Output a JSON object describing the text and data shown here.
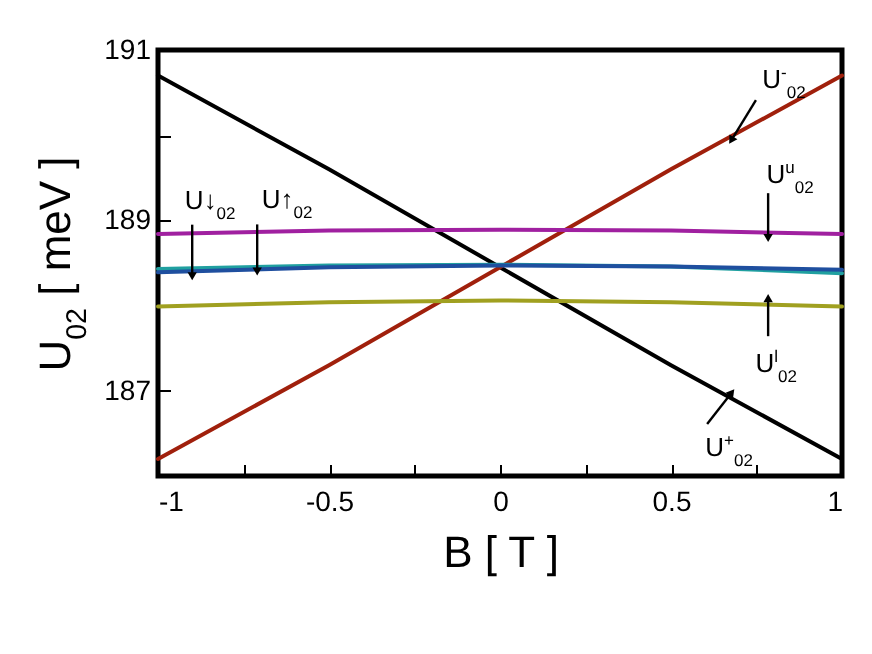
{
  "chart_data": {
    "type": "line",
    "xlabel": "B [ T ]",
    "ylabel": "U$_{02}$ [ meV ]",
    "x": [
      -1,
      -0.5,
      0,
      0.5,
      1
    ],
    "series": [
      {
        "color": "#000000",
        "values": [
          190.7,
          189.6,
          188.45,
          187.3,
          186.2
        ]
      },
      {
        "color": "#a0200c",
        "values": [
          186.2,
          187.3,
          188.45,
          189.6,
          190.7
        ]
      },
      {
        "color": "#a020a0",
        "values": [
          188.84,
          188.88,
          188.89,
          188.88,
          188.84
        ]
      },
      {
        "color": "#20a0a0",
        "values": [
          188.43,
          188.47,
          188.48,
          188.46,
          188.38
        ]
      },
      {
        "color": "#1f4f9f",
        "values": [
          188.39,
          188.45,
          188.47,
          188.46,
          188.42
        ]
      },
      {
        "color": "#a0a020",
        "values": [
          187.99,
          188.04,
          188.06,
          188.04,
          187.99
        ]
      }
    ],
    "xlim": [
      -1,
      1
    ],
    "ylim": [
      186,
      191
    ],
    "xticks": [
      -1,
      {
        "value": -0.75,
        "label": null
      },
      -0.5,
      {
        "value": -0.25,
        "label": null
      },
      0,
      {
        "value": 0.25,
        "label": null
      },
      0.5,
      {
        "value": 0.75,
        "label": null
      },
      1
    ],
    "yticks": [
      187,
      {
        "value": 188,
        "label": null
      },
      189,
      {
        "value": 190,
        "label": null
      },
      191
    ],
    "marker": "none",
    "line_style": "solid",
    "grid": false,
    "annotations": [
      {
        "text": "U$^{-}$$_{02}$",
        "x": 0.684,
        "y": 189.99
      },
      {
        "text": "U$^{u}$$_{02}$",
        "x": 0.784,
        "y": 188.85
      },
      {
        "text": "U↓$_{02}$",
        "x": -0.9,
        "y": 188.41
      },
      {
        "text": "U↑$_{02}$",
        "x": -0.71,
        "y": 188.46
      },
      {
        "text": "U$^{l}$$_{02}$",
        "x": 0.784,
        "y": 188.04
      },
      {
        "text": "U$^{+}$$_{02}$",
        "x": 0.67,
        "y": 186.94
      }
    ]
  }
}
